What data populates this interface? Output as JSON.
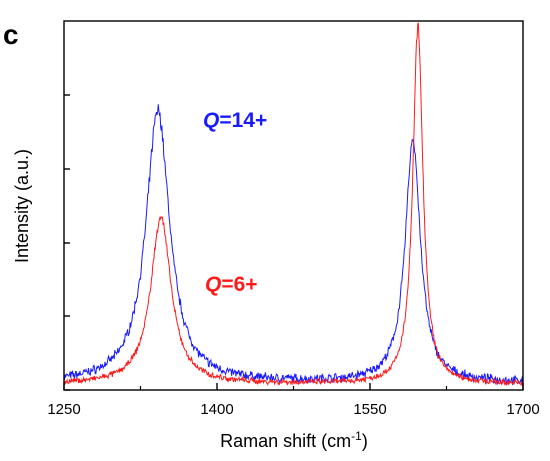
{
  "chart_data": {
    "type": "line",
    "panel_label": "c",
    "title": "",
    "xlabel": "Raman shift (cm",
    "xlabel_sup": "-1",
    "xlabel_suffix": ")",
    "ylabel": "Intensity (a.u.)",
    "xlim": [
      1250,
      1700
    ],
    "ylim": [
      0,
      1
    ],
    "x_ticks": [
      1250,
      1400,
      1550,
      1700
    ],
    "x_tick_labels": [
      "1250",
      "1400",
      "1550",
      "1700"
    ],
    "y_ticks": [
      0,
      0.25,
      0.5,
      0.75,
      1.0
    ],
    "y_tick_labels_shown": false,
    "grid": false,
    "legend": "none",
    "series": [
      {
        "label": "Q=14+",
        "label_prefix": "Q",
        "label_suffix": "=14+",
        "color": "#1a1aff",
        "baseline": 0.025,
        "peaks": [
          {
            "center": 1342,
            "amplitude": 0.945,
            "hwhm": 14,
            "form": "lorentzian"
          },
          {
            "center": 1592,
            "amplitude": 0.84,
            "hwhm": 9,
            "form": "lorentzian"
          }
        ],
        "noise": 0.012
      },
      {
        "label": "Q=6+",
        "label_prefix": "Q",
        "label_suffix": "=6+",
        "color": "#ff1a1a",
        "baseline": 0.02,
        "peaks": [
          {
            "center": 1345,
            "amplitude": 0.58,
            "hwhm": 12,
            "form": "lorentzian"
          },
          {
            "center": 1597,
            "amplitude": 1.24,
            "hwhm": 6,
            "form": "lorentzian"
          }
        ],
        "noise": 0.008
      }
    ]
  }
}
